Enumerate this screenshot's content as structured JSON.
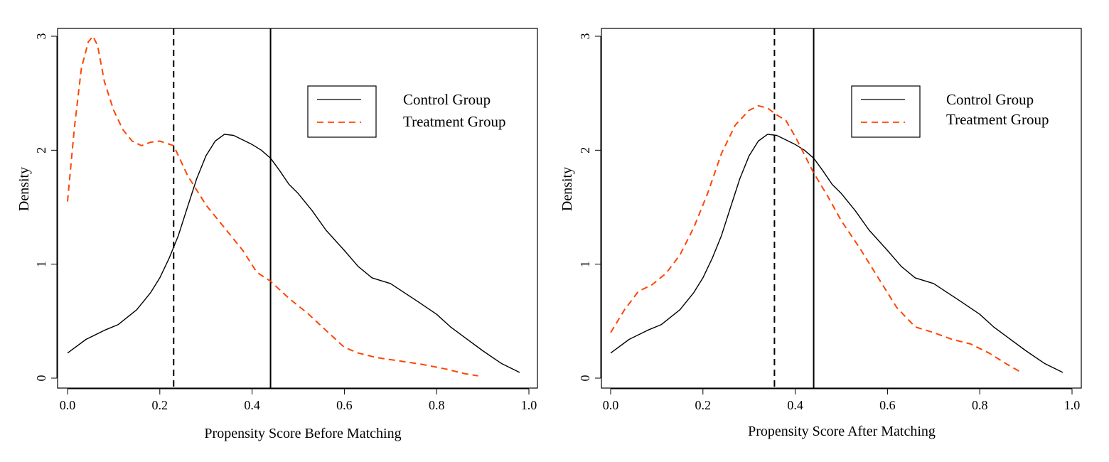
{
  "colors": {
    "control": "#000000",
    "treatment": "#ff4500"
  },
  "legend": {
    "control": "Control Group",
    "treatment": "Treatment Group"
  },
  "chart_data": [
    {
      "type": "line",
      "xlabel": "Propensity Score Before Matching",
      "ylabel": "Density",
      "xlim": [
        0,
        1.0
      ],
      "ylim": [
        0,
        3
      ],
      "x_ticks": [
        "0.0",
        "0.2",
        "0.4",
        "0.6",
        "0.8",
        "1.0"
      ],
      "y_ticks": [
        "0",
        "1",
        "2",
        "3"
      ],
      "legend_position": "top-right",
      "grid": false,
      "vlines": [
        {
          "x": 0.23,
          "style": "dashed"
        },
        {
          "x": 0.44,
          "style": "solid"
        }
      ],
      "series": [
        {
          "name": "Control Group",
          "style": "solid",
          "x": [
            0.0,
            0.04,
            0.08,
            0.11,
            0.15,
            0.18,
            0.2,
            0.22,
            0.24,
            0.26,
            0.28,
            0.3,
            0.32,
            0.34,
            0.36,
            0.38,
            0.4,
            0.42,
            0.44,
            0.46,
            0.48,
            0.5,
            0.53,
            0.56,
            0.6,
            0.63,
            0.66,
            0.7,
            0.73,
            0.76,
            0.8,
            0.83,
            0.86,
            0.9,
            0.94,
            0.98
          ],
          "y": [
            0.22,
            0.34,
            0.42,
            0.47,
            0.6,
            0.75,
            0.88,
            1.05,
            1.25,
            1.5,
            1.75,
            1.95,
            2.08,
            2.14,
            2.13,
            2.09,
            2.05,
            2.0,
            1.93,
            1.82,
            1.7,
            1.62,
            1.47,
            1.3,
            1.12,
            0.98,
            0.88,
            0.83,
            0.75,
            0.67,
            0.56,
            0.45,
            0.36,
            0.24,
            0.13,
            0.05
          ]
        },
        {
          "name": "Treatment Group",
          "style": "dashed",
          "x": [
            0.0,
            0.015,
            0.03,
            0.045,
            0.055,
            0.065,
            0.08,
            0.1,
            0.12,
            0.14,
            0.16,
            0.18,
            0.2,
            0.23,
            0.26,
            0.3,
            0.34,
            0.38,
            0.41,
            0.44,
            0.48,
            0.52,
            0.56,
            0.6,
            0.63,
            0.67,
            0.72,
            0.77,
            0.82,
            0.86,
            0.89
          ],
          "y": [
            1.55,
            2.2,
            2.72,
            2.95,
            3.0,
            2.92,
            2.6,
            2.35,
            2.18,
            2.08,
            2.04,
            2.07,
            2.08,
            2.04,
            1.78,
            1.52,
            1.32,
            1.12,
            0.93,
            0.85,
            0.7,
            0.57,
            0.42,
            0.27,
            0.22,
            0.18,
            0.15,
            0.12,
            0.08,
            0.04,
            0.02
          ]
        }
      ]
    },
    {
      "type": "line",
      "xlabel": "Propensity Score After Matching",
      "ylabel": "Density",
      "xlim": [
        0,
        1.0
      ],
      "ylim": [
        0,
        3
      ],
      "x_ticks": [
        "0.0",
        "0.2",
        "0.4",
        "0.6",
        "0.8",
        "1.0"
      ],
      "y_ticks": [
        "0",
        "1",
        "2",
        "3"
      ],
      "legend_position": "top-right",
      "grid": false,
      "vlines": [
        {
          "x": 0.355,
          "style": "dashed"
        },
        {
          "x": 0.44,
          "style": "solid"
        }
      ],
      "series": [
        {
          "name": "Control Group",
          "style": "solid",
          "x": [
            0.0,
            0.04,
            0.08,
            0.11,
            0.15,
            0.18,
            0.2,
            0.22,
            0.24,
            0.26,
            0.28,
            0.3,
            0.32,
            0.34,
            0.36,
            0.38,
            0.4,
            0.42,
            0.44,
            0.46,
            0.48,
            0.5,
            0.53,
            0.56,
            0.6,
            0.63,
            0.66,
            0.7,
            0.73,
            0.76,
            0.8,
            0.83,
            0.86,
            0.9,
            0.94,
            0.98
          ],
          "y": [
            0.22,
            0.34,
            0.42,
            0.47,
            0.6,
            0.75,
            0.88,
            1.05,
            1.25,
            1.5,
            1.75,
            1.95,
            2.08,
            2.14,
            2.13,
            2.09,
            2.05,
            2.0,
            1.93,
            1.82,
            1.7,
            1.62,
            1.47,
            1.3,
            1.12,
            0.98,
            0.88,
            0.83,
            0.75,
            0.67,
            0.56,
            0.45,
            0.36,
            0.24,
            0.13,
            0.05
          ]
        },
        {
          "name": "Treatment Group",
          "style": "dashed",
          "x": [
            0.0,
            0.03,
            0.06,
            0.09,
            0.12,
            0.15,
            0.18,
            0.21,
            0.24,
            0.27,
            0.3,
            0.32,
            0.34,
            0.36,
            0.38,
            0.4,
            0.42,
            0.44,
            0.47,
            0.5,
            0.54,
            0.58,
            0.62,
            0.66,
            0.7,
            0.74,
            0.78,
            0.82,
            0.86,
            0.89
          ],
          "y": [
            0.4,
            0.6,
            0.76,
            0.82,
            0.92,
            1.08,
            1.32,
            1.62,
            1.97,
            2.22,
            2.35,
            2.39,
            2.37,
            2.31,
            2.26,
            2.12,
            1.96,
            1.8,
            1.6,
            1.38,
            1.14,
            0.88,
            0.62,
            0.45,
            0.4,
            0.34,
            0.3,
            0.22,
            0.12,
            0.05
          ]
        }
      ]
    }
  ]
}
